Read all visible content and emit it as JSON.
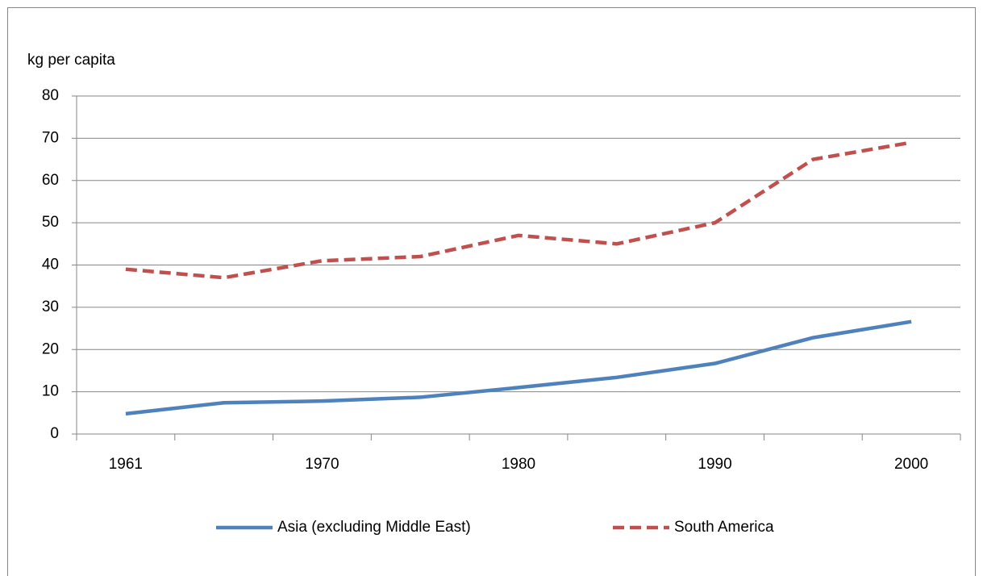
{
  "chart_data": {
    "type": "line",
    "y_axis_label": "kg per capita",
    "categories": [
      "1961",
      null,
      "1970",
      null,
      "1980",
      null,
      "1990",
      null,
      "2000"
    ],
    "series": [
      {
        "name": "Asia (excluding Middle East)",
        "color": "#4f81bd",
        "dash": "solid",
        "values": [
          4.8,
          7.4,
          7.8,
          8.7,
          11,
          13.4,
          16.7,
          22.8,
          26.6
        ]
      },
      {
        "name": "South America",
        "color": "#c0504d",
        "dash": "dashed",
        "values": [
          39,
          37,
          41,
          42,
          47,
          45,
          50,
          65,
          69
        ]
      }
    ],
    "ylim": [
      0,
      80
    ],
    "yticks": [
      0,
      10,
      20,
      30,
      40,
      50,
      60,
      70,
      80
    ],
    "grid": true,
    "legend": "bottom"
  }
}
